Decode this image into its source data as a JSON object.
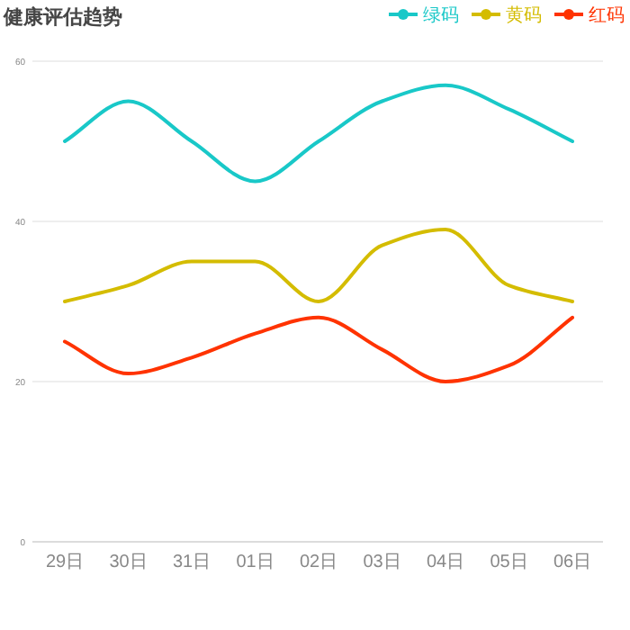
{
  "chart_data": {
    "type": "line",
    "title": "健康评估趋势",
    "categories": [
      "29日",
      "30日",
      "31日",
      "01日",
      "02日",
      "03日",
      "04日",
      "05日",
      "06日"
    ],
    "series": [
      {
        "name": "绿码",
        "color": "#19c8c8",
        "values": [
          50,
          55,
          50,
          45,
          50,
          55,
          57,
          54,
          50
        ]
      },
      {
        "name": "黄码",
        "color": "#d4bc00",
        "values": [
          30,
          32,
          35,
          35,
          30,
          37,
          39,
          32,
          30
        ]
      },
      {
        "name": "红码",
        "color": "#ff3300",
        "values": [
          25,
          21,
          23,
          26,
          28,
          24,
          20,
          22,
          28
        ]
      }
    ],
    "ylim": [
      0,
      60
    ],
    "yticks": [
      0,
      20,
      40,
      60
    ],
    "grid": "y",
    "legend": "top right"
  }
}
